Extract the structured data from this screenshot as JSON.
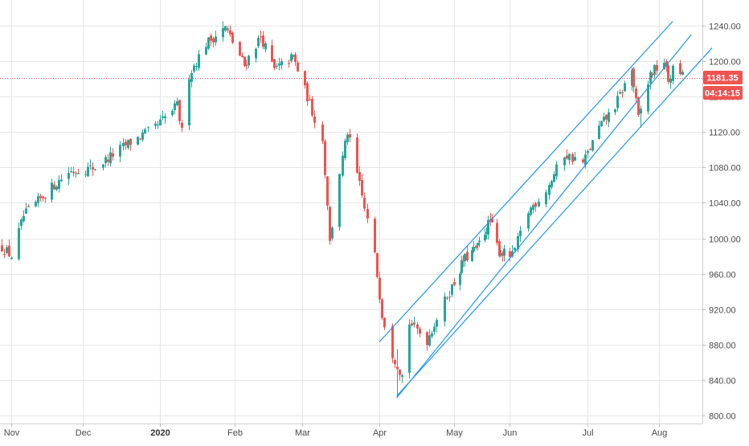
{
  "chart_data": {
    "type": "candlestick",
    "title": "",
    "xlabel": "",
    "ylabel": "",
    "ylim": [
      795,
      1260
    ],
    "grid": true,
    "y_ticks": [
      "1240.00",
      "1200.00",
      "1160.00",
      "1120.00",
      "1080.00",
      "1040.00",
      "1000.00",
      "960.00",
      "920.00",
      "880.00",
      "840.00",
      "800.00"
    ],
    "x_ticks": [
      "Nov",
      "Dec",
      "2020",
      "Feb",
      "Mar",
      "Apr",
      "May",
      "Jun",
      "Jul",
      "Aug"
    ],
    "current_price": {
      "value": 1181.35,
      "label": "1181.35"
    },
    "countdown_label": "04:14:15",
    "colors": {
      "up": "#26a69a",
      "down": "#ef5350",
      "channel": "#2196f3",
      "grid": "#e6e6e6"
    },
    "anchors": [
      [
        "2019-10-28",
        990
      ],
      [
        "2019-11-01",
        980
      ],
      [
        "2019-11-06",
        1025
      ],
      [
        "2019-11-15",
        1050
      ],
      [
        "2019-11-25",
        1075
      ],
      [
        "2019-12-06",
        1080
      ],
      [
        "2019-12-18",
        1105
      ],
      [
        "2019-12-30",
        1125
      ],
      [
        "2020-01-08",
        1150
      ],
      [
        "2020-01-10",
        1120
      ],
      [
        "2020-01-13",
        1185
      ],
      [
        "2020-01-20",
        1220
      ],
      [
        "2020-01-28",
        1238
      ],
      [
        "2020-02-05",
        1195
      ],
      [
        "2020-02-12",
        1228
      ],
      [
        "2020-02-18",
        1190
      ],
      [
        "2020-02-26",
        1205
      ],
      [
        "2020-03-03",
        1160
      ],
      [
        "2020-03-09",
        1110
      ],
      [
        "2020-03-11",
        1040
      ],
      [
        "2020-03-12",
        995
      ],
      [
        "2020-03-16",
        1075
      ],
      [
        "2020-03-19",
        1120
      ],
      [
        "2020-03-24",
        1060
      ],
      [
        "2020-03-30",
        980
      ],
      [
        "2020-04-02",
        915
      ],
      [
        "2020-04-06",
        870
      ],
      [
        "2020-04-10",
        845
      ],
      [
        "2020-04-13",
        905
      ],
      [
        "2020-04-20",
        885
      ],
      [
        "2020-04-28",
        935
      ],
      [
        "2020-05-06",
        975
      ],
      [
        "2020-05-14",
        990
      ],
      [
        "2020-05-21",
        1020
      ],
      [
        "2020-05-26",
        985
      ],
      [
        "2020-06-02",
        980
      ],
      [
        "2020-06-08",
        1030
      ],
      [
        "2020-06-15",
        1055
      ],
      [
        "2020-06-22",
        1095
      ],
      [
        "2020-06-29",
        1085
      ],
      [
        "2020-07-06",
        1125
      ],
      [
        "2020-07-13",
        1150
      ],
      [
        "2020-07-20",
        1190
      ],
      [
        "2020-07-23",
        1135
      ],
      [
        "2020-07-28",
        1185
      ],
      [
        "2020-08-03",
        1200
      ],
      [
        "2020-08-05",
        1178
      ],
      [
        "2020-08-08",
        1196
      ],
      [
        "2020-08-11",
        1183
      ]
    ],
    "extremes": {
      "2020-01-27": {
        "high": 1245,
        "low": 1222
      },
      "2020-04-08": {
        "high": 875,
        "low": 820
      },
      "2020-07-24": {
        "high": 1150,
        "low": 1125
      }
    },
    "channels": [
      {
        "start": [
          "2020-04-01",
          883
        ],
        "end": [
          "2020-08-07",
          1245
        ]
      },
      {
        "start": [
          "2020-04-08",
          820
        ],
        "end": [
          "2020-08-15",
          1230
        ]
      },
      {
        "start": [
          "2020-04-08",
          822
        ],
        "end": [
          "2020-08-24",
          1215
        ]
      }
    ]
  }
}
